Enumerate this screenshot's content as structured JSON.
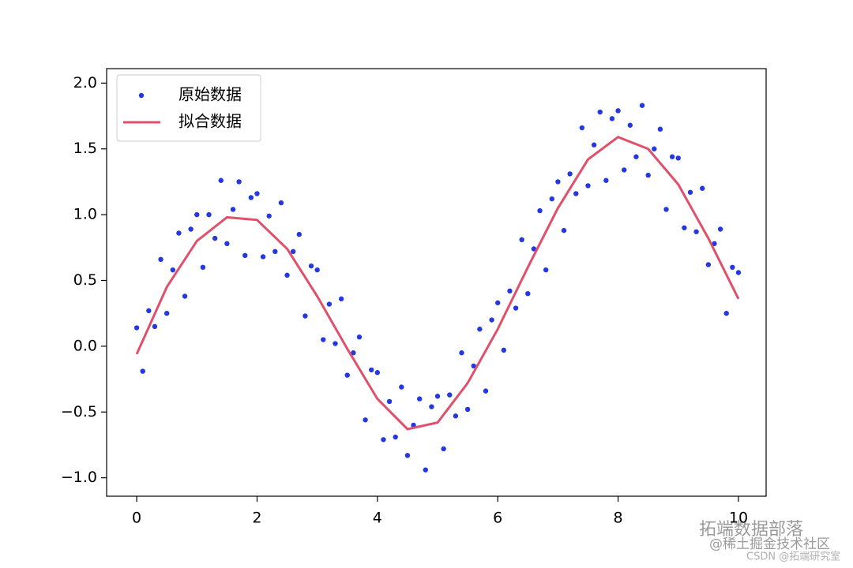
{
  "chart_data": {
    "type": "scatter",
    "series": [
      {
        "name": "原始数据",
        "type": "scatter",
        "color": "#2338e0",
        "x": [
          0.0,
          0.1,
          0.2,
          0.3,
          0.4,
          0.5,
          0.6,
          0.7,
          0.8,
          0.9,
          1.0,
          1.1,
          1.2,
          1.3,
          1.4,
          1.5,
          1.6,
          1.7,
          1.8,
          1.9,
          2.0,
          2.1,
          2.2,
          2.3,
          2.4,
          2.5,
          2.6,
          2.7,
          2.8,
          2.9,
          3.0,
          3.1,
          3.2,
          3.3,
          3.4,
          3.5,
          3.6,
          3.7,
          3.8,
          3.9,
          4.0,
          4.1,
          4.2,
          4.3,
          4.4,
          4.5,
          4.6,
          4.7,
          4.8,
          4.9,
          5.0,
          5.1,
          5.2,
          5.3,
          5.4,
          5.5,
          5.6,
          5.7,
          5.8,
          5.9,
          6.0,
          6.1,
          6.2,
          6.3,
          6.4,
          6.5,
          6.6,
          6.7,
          6.8,
          6.9,
          7.0,
          7.1,
          7.2,
          7.3,
          7.4,
          7.5,
          7.6,
          7.7,
          7.8,
          7.9,
          8.0,
          8.1,
          8.2,
          8.3,
          8.4,
          8.5,
          8.6,
          8.7,
          8.8,
          8.9,
          9.0,
          9.1,
          9.2,
          9.3,
          9.4,
          9.5,
          9.6,
          9.7,
          9.8,
          9.9,
          10.0
        ],
        "values": [
          0.14,
          -0.19,
          0.27,
          0.15,
          0.66,
          0.25,
          0.58,
          0.86,
          0.38,
          0.89,
          1.0,
          0.6,
          1.0,
          0.82,
          1.26,
          0.78,
          1.04,
          1.25,
          0.69,
          1.13,
          1.16,
          0.68,
          0.99,
          0.72,
          1.09,
          0.54,
          0.72,
          0.85,
          0.23,
          0.61,
          0.58,
          0.05,
          0.32,
          0.02,
          0.36,
          -0.22,
          -0.05,
          0.07,
          -0.56,
          -0.18,
          -0.2,
          -0.71,
          -0.42,
          -0.69,
          -0.31,
          -0.83,
          -0.6,
          -0.4,
          -0.94,
          -0.46,
          -0.38,
          -0.78,
          -0.37,
          -0.53,
          -0.05,
          -0.48,
          -0.15,
          0.13,
          -0.34,
          0.2,
          0.33,
          -0.03,
          0.42,
          0.29,
          0.81,
          0.4,
          0.74,
          1.03,
          0.58,
          1.12,
          1.25,
          0.88,
          1.31,
          1.16,
          1.66,
          1.22,
          1.53,
          1.78,
          1.26,
          1.73,
          1.79,
          1.34,
          1.68,
          1.44,
          1.83,
          1.3,
          1.5,
          1.65,
          1.04,
          1.44,
          1.43,
          0.9,
          1.17,
          0.87,
          1.2,
          0.62,
          0.78,
          0.89,
          0.25,
          0.6,
          0.56
        ]
      },
      {
        "name": "拟合数据",
        "type": "line",
        "color": "#e0506a",
        "x": [
          0,
          0.5,
          1,
          1.5,
          2,
          2.5,
          3,
          3.5,
          4,
          4.5,
          5,
          5.5,
          6,
          6.5,
          7,
          7.5,
          8,
          8.5,
          9,
          9.5,
          10
        ],
        "values": [
          -0.06,
          0.45,
          0.8,
          0.98,
          0.96,
          0.74,
          0.38,
          -0.02,
          -0.4,
          -0.63,
          -0.58,
          -0.28,
          0.13,
          0.6,
          1.05,
          1.42,
          1.59,
          1.5,
          1.23,
          0.82,
          0.36
        ]
      }
    ],
    "xlim": [
      -0.5,
      10.46
    ],
    "ylim": [
      -1.14,
      2.11
    ],
    "xticks": [
      0,
      2,
      4,
      6,
      8,
      10
    ],
    "yticks": [
      {
        "value": -1,
        "label": "−1.0"
      },
      {
        "value": -0.5,
        "label": "−0.5"
      },
      {
        "value": 0,
        "label": "0.0"
      },
      {
        "value": 0.5,
        "label": "0.5"
      },
      {
        "value": 1,
        "label": "1.0"
      },
      {
        "value": 1.5,
        "label": "1.5"
      },
      {
        "value": 2,
        "label": "2.0"
      }
    ],
    "grid": false,
    "legend": "upper left"
  },
  "watermarks": [
    "拓端数据部落",
    "@稀土掘金技术社区",
    "CSDN @拓端研究室"
  ]
}
